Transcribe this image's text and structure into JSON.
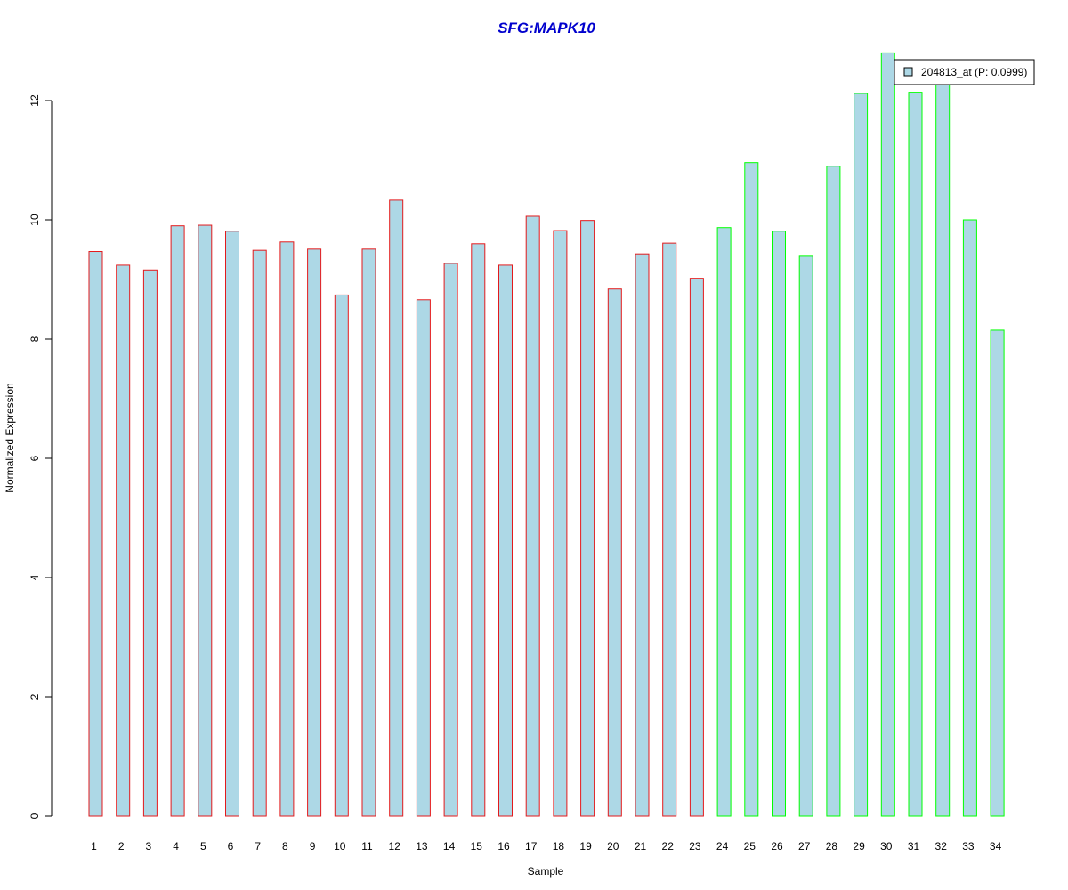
{
  "chart_data": {
    "type": "bar",
    "title": "SFG:MAPK10",
    "xlabel": "Sample",
    "ylabel": "Normalized Expression",
    "categories": [
      "1",
      "2",
      "3",
      "4",
      "5",
      "6",
      "7",
      "8",
      "9",
      "10",
      "11",
      "12",
      "13",
      "14",
      "15",
      "16",
      "17",
      "18",
      "19",
      "20",
      "21",
      "22",
      "23",
      "24",
      "25",
      "26",
      "27",
      "28",
      "29",
      "30",
      "31",
      "32",
      "33",
      "34"
    ],
    "values": [
      9.47,
      9.24,
      9.16,
      9.9,
      9.91,
      9.81,
      9.49,
      9.63,
      9.51,
      8.74,
      9.51,
      10.33,
      8.66,
      9.27,
      9.6,
      9.24,
      10.06,
      9.82,
      9.99,
      8.84,
      9.43,
      9.61,
      9.02,
      9.87,
      10.96,
      9.81,
      9.39,
      10.9,
      12.12,
      12.8,
      12.14,
      12.4,
      10.0,
      8.15
    ],
    "groups": [
      {
        "samples": [
          1,
          23
        ],
        "border_color": "#e31a1c"
      },
      {
        "samples": [
          24,
          34
        ],
        "border_color": "#00ff00"
      }
    ],
    "bar_fill": "#add8e6",
    "title_color": "#0000cd",
    "yticks": [
      0,
      2,
      4,
      6,
      8,
      10,
      12
    ],
    "ylim": [
      0,
      12.8
    ],
    "grid": false,
    "legend": {
      "position": "top-right",
      "entries": [
        {
          "label": "204813_at (P: 0.0999)",
          "fill": "#add8e6"
        }
      ]
    }
  }
}
